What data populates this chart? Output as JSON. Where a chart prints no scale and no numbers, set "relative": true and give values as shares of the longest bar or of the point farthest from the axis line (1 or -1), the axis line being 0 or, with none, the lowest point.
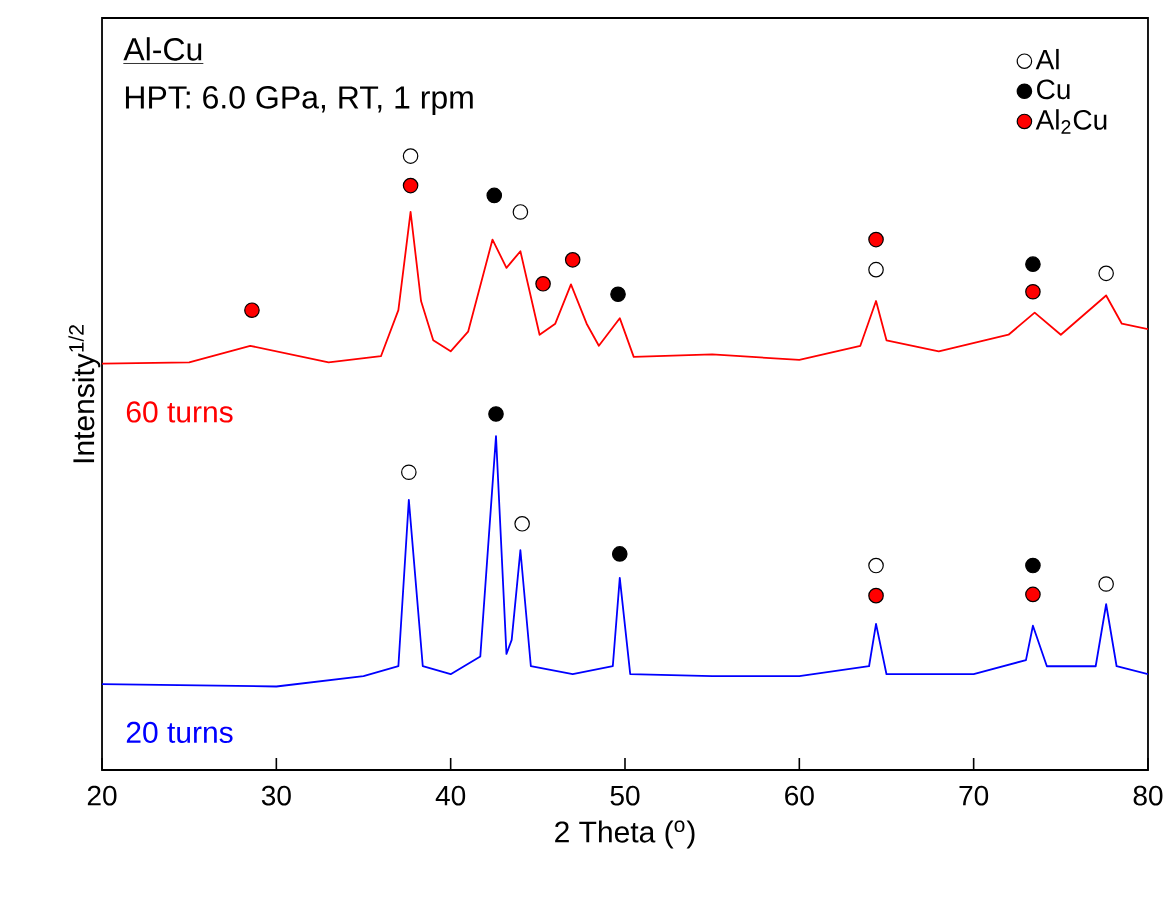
{
  "chart_data": {
    "type": "line",
    "relative": true,
    "xlabel": "2 Theta ($^{o}$)",
    "ylabel": "Intensity$^{1/2}$",
    "xlim": [
      20,
      80
    ],
    "xticks": [
      20,
      30,
      40,
      50,
      60,
      70,
      80
    ],
    "legend": "top right",
    "annotations": [
      "Al-Cu",
      "HPT: 6.0 GPa, RT, 1 rpm"
    ],
    "series": [
      {
        "name": "60 turns",
        "color": "#ff0000",
        "x": [
          20,
          25,
          28.5,
          33,
          36,
          37.0,
          37.7,
          38.3,
          39,
          40,
          41,
          42.4,
          43.2,
          44.0,
          45.1,
          46,
          46.9,
          47.8,
          48.5,
          49.7,
          50.5,
          55,
          60,
          63.5,
          64.4,
          65,
          68,
          72,
          73.5,
          75,
          77.6,
          78.5,
          80
        ],
        "values": [
          0.662,
          0.664,
          0.691,
          0.664,
          0.674,
          0.749,
          0.909,
          0.764,
          0.7,
          0.682,
          0.714,
          0.864,
          0.818,
          0.845,
          0.709,
          0.727,
          0.791,
          0.727,
          0.691,
          0.736,
          0.673,
          0.677,
          0.668,
          0.691,
          0.764,
          0.7,
          0.682,
          0.709,
          0.745,
          0.709,
          0.773,
          0.727,
          0.718
        ]
      },
      {
        "name": "20 turns",
        "color": "#0000ff",
        "x": [
          20,
          30,
          35,
          37.0,
          37.6,
          38.4,
          40,
          41.7,
          42.6,
          43.2,
          43.5,
          44.0,
          44.6,
          47,
          49.3,
          49.7,
          50.3,
          55,
          60,
          64,
          64.4,
          65,
          70,
          73.0,
          73.4,
          74.2,
          77,
          77.6,
          78.2,
          80
        ],
        "values": [
          0.14,
          0.136,
          0.153,
          0.169,
          0.44,
          0.169,
          0.156,
          0.185,
          0.544,
          0.189,
          0.212,
          0.358,
          0.169,
          0.156,
          0.169,
          0.313,
          0.156,
          0.153,
          0.153,
          0.169,
          0.238,
          0.156,
          0.156,
          0.179,
          0.235,
          0.169,
          0.169,
          0.27,
          0.169,
          0.156
        ]
      },
      {
        "name": "Al",
        "type": "scatter",
        "marker": "circle",
        "color": "#ffffff",
        "x": [
          37.7,
          44.0,
          64.4,
          77.6,
          37.6,
          44.1,
          64.4,
          77.6
        ],
        "values": [
          1.0,
          0.909,
          0.815,
          0.809,
          0.485,
          0.401,
          0.333,
          0.303
        ]
      },
      {
        "name": "Cu",
        "type": "scatter",
        "marker": "circle",
        "color": "#000000",
        "x": [
          42.5,
          49.6,
          73.4,
          42.6,
          49.7,
          73.4
        ],
        "values": [
          0.936,
          0.775,
          0.824,
          0.58,
          0.352,
          0.333
        ]
      },
      {
        "name": "Al$_{2}$Cu",
        "type": "scatter",
        "marker": "circle",
        "color": "#ff0000",
        "x": [
          28.6,
          37.7,
          45.3,
          47.0,
          64.4,
          73.4,
          64.4,
          73.4
        ],
        "values": [
          0.749,
          0.952,
          0.792,
          0.831,
          0.864,
          0.779,
          0.284,
          0.286
        ]
      }
    ]
  }
}
